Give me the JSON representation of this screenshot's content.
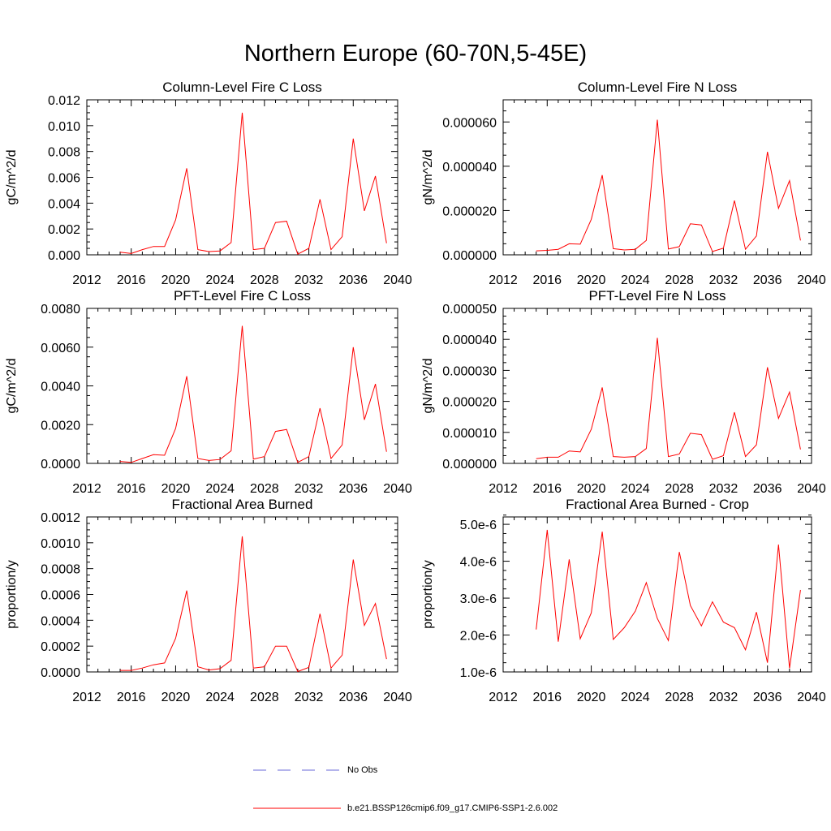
{
  "title": "Northern Europe (60-70N,5-45E)",
  "legend": [
    {
      "label": "No Obs",
      "color": "#6a6ad9",
      "style": "dashed"
    },
    {
      "label": "b.e21.BSSP126cmip6.f09_g17.CMIP6-SSP1-2.6.002",
      "color": "#ff0000",
      "style": "solid"
    }
  ],
  "chart_data": [
    {
      "type": "line",
      "title": "Column-Level Fire C Loss",
      "ylabel": "gC/m^2/d",
      "xlim": [
        2012,
        2040
      ],
      "xticks": [
        2012,
        2016,
        2020,
        2024,
        2028,
        2032,
        2036,
        2040
      ],
      "ylim": [
        0,
        0.012
      ],
      "yticks": [
        0,
        0.002,
        0.004,
        0.006,
        0.008,
        0.01,
        0.012
      ],
      "ytick_labels": [
        "0.000",
        "0.002",
        "0.004",
        "0.006",
        "0.008",
        "0.010",
        "0.012"
      ],
      "x": [
        2015,
        2016,
        2017,
        2018,
        2019,
        2020,
        2021,
        2022,
        2023,
        2024,
        2025,
        2026,
        2027,
        2028,
        2029,
        2030,
        2031,
        2032,
        2033,
        2034,
        2035,
        2036,
        2037,
        2038,
        2039
      ],
      "series": [
        {
          "color": "#ff0000",
          "values": [
            0.0002,
            0.0001,
            0.0004,
            0.00065,
            0.00065,
            0.0027,
            0.0067,
            0.0004,
            0.00025,
            0.0003,
            0.00095,
            0.011,
            0.0004,
            0.0005,
            0.0025,
            0.0026,
            5e-05,
            0.0005,
            0.0043,
            0.0004,
            0.0014,
            0.009,
            0.0034,
            0.0061,
            0.0009
          ]
        }
      ]
    },
    {
      "type": "line",
      "title": "Column-Level Fire N Loss",
      "ylabel": "gN/m^2/d",
      "xlim": [
        2012,
        2040
      ],
      "xticks": [
        2012,
        2016,
        2020,
        2024,
        2028,
        2032,
        2036,
        2040
      ],
      "ylim": [
        0,
        7e-05
      ],
      "yticks": [
        0,
        2e-05,
        4e-05,
        6e-05
      ],
      "ytick_labels": [
        "0.000000",
        "0.000020",
        "0.000040",
        "0.000060"
      ],
      "x": [
        2015,
        2016,
        2017,
        2018,
        2019,
        2020,
        2021,
        2022,
        2023,
        2024,
        2025,
        2026,
        2027,
        2028,
        2029,
        2030,
        2031,
        2032,
        2033,
        2034,
        2035,
        2036,
        2037,
        2038,
        2039
      ],
      "series": [
        {
          "color": "#ff0000",
          "values": [
            1.8e-06,
            2e-06,
            2.5e-06,
            5e-06,
            4.8e-06,
            1.6e-05,
            3.6e-05,
            2.8e-06,
            2.2e-06,
            2.5e-06,
            6.5e-06,
            6.1e-05,
            2.6e-06,
            3.7e-06,
            1.4e-05,
            1.35e-05,
            1.5e-06,
            3e-06,
            2.45e-05,
            2.5e-06,
            8.5e-06,
            4.65e-05,
            2.1e-05,
            3.35e-05,
            6.5e-06
          ]
        }
      ]
    },
    {
      "type": "line",
      "title": "PFT-Level Fire C Loss",
      "ylabel": "gC/m^2/d",
      "xlim": [
        2012,
        2040
      ],
      "xticks": [
        2012,
        2016,
        2020,
        2024,
        2028,
        2032,
        2036,
        2040
      ],
      "ylim": [
        0,
        0.008
      ],
      "yticks": [
        0,
        0.002,
        0.004,
        0.006,
        0.008
      ],
      "ytick_labels": [
        "0.0000",
        "0.0020",
        "0.0040",
        "0.0060",
        "0.0080"
      ],
      "x": [
        2015,
        2016,
        2017,
        2018,
        2019,
        2020,
        2021,
        2022,
        2023,
        2024,
        2025,
        2026,
        2027,
        2028,
        2029,
        2030,
        2031,
        2032,
        2033,
        2034,
        2035,
        2036,
        2037,
        2038,
        2039
      ],
      "series": [
        {
          "color": "#ff0000",
          "values": [
            0.0001,
            5e-05,
            0.00025,
            0.00045,
            0.00042,
            0.0018,
            0.0045,
            0.00025,
            0.00015,
            0.0002,
            0.00065,
            0.0071,
            0.00022,
            0.00035,
            0.00165,
            0.00175,
            5e-05,
            0.00035,
            0.00285,
            0.00025,
            0.00095,
            0.006,
            0.00225,
            0.0041,
            0.0006
          ]
        }
      ]
    },
    {
      "type": "line",
      "title": "PFT-Level Fire N Loss",
      "ylabel": "gN/m^2/d",
      "xlim": [
        2012,
        2040
      ],
      "xticks": [
        2012,
        2016,
        2020,
        2024,
        2028,
        2032,
        2036,
        2040
      ],
      "ylim": [
        0,
        5e-05
      ],
      "yticks": [
        0,
        1e-05,
        2e-05,
        3e-05,
        4e-05,
        5e-05
      ],
      "ytick_labels": [
        "0.000000",
        "0.000010",
        "0.000020",
        "0.000030",
        "0.000040",
        "0.000050"
      ],
      "x": [
        2015,
        2016,
        2017,
        2018,
        2019,
        2020,
        2021,
        2022,
        2023,
        2024,
        2025,
        2026,
        2027,
        2028,
        2029,
        2030,
        2031,
        2032,
        2033,
        2034,
        2035,
        2036,
        2037,
        2038,
        2039
      ],
      "series": [
        {
          "color": "#ff0000",
          "values": [
            1.5e-06,
            2e-06,
            2e-06,
            4e-06,
            3.7e-06,
            1.1e-05,
            2.45e-05,
            2.2e-06,
            2e-06,
            2.2e-06,
            4.8e-06,
            4.05e-05,
            2.2e-06,
            3e-06,
            9.7e-06,
            9.3e-06,
            1.3e-06,
            2.5e-06,
            1.65e-05,
            2.2e-06,
            6e-06,
            3.1e-05,
            1.45e-05,
            2.3e-05,
            4.5e-06
          ]
        }
      ]
    },
    {
      "type": "line",
      "title": "Fractional Area Burned",
      "ylabel": "proportion/y",
      "xlim": [
        2012,
        2040
      ],
      "xticks": [
        2012,
        2016,
        2020,
        2024,
        2028,
        2032,
        2036,
        2040
      ],
      "ylim": [
        0,
        0.0012
      ],
      "yticks": [
        0,
        0.0002,
        0.0004,
        0.0006,
        0.0008,
        0.001,
        0.0012
      ],
      "ytick_labels": [
        "0.0000",
        "0.0002",
        "0.0004",
        "0.0006",
        "0.0008",
        "0.0010",
        "0.0012"
      ],
      "x": [
        2015,
        2016,
        2017,
        2018,
        2019,
        2020,
        2021,
        2022,
        2023,
        2024,
        2025,
        2026,
        2027,
        2028,
        2029,
        2030,
        2031,
        2032,
        2033,
        2034,
        2035,
        2036,
        2037,
        2038,
        2039
      ],
      "series": [
        {
          "color": "#ff0000",
          "values": [
            1.2e-05,
            1.2e-05,
            3e-05,
            5.5e-05,
            7e-05,
            0.00026,
            0.00063,
            4e-05,
            1.5e-05,
            2.5e-05,
            9e-05,
            0.00105,
            3e-05,
            4e-05,
            0.0002,
            0.0002,
            3e-06,
            3.5e-05,
            0.00045,
            3e-05,
            0.00013,
            0.00087,
            0.00036,
            0.00053,
            0.0001
          ]
        }
      ]
    },
    {
      "type": "line",
      "title": "Fractional Area Burned - Crop",
      "ylabel": "proportion/y",
      "xlim": [
        2012,
        2040
      ],
      "xticks": [
        2012,
        2016,
        2020,
        2024,
        2028,
        2032,
        2036,
        2040
      ],
      "ylim": [
        1e-06,
        5.2e-06
      ],
      "yticks": [
        1e-06,
        2e-06,
        3e-06,
        4e-06,
        5e-06
      ],
      "ytick_labels": [
        "1.0e-6",
        "2.0e-6",
        "3.0e-6",
        "4.0e-6",
        "5.0e-6"
      ],
      "x": [
        2015,
        2016,
        2017,
        2018,
        2019,
        2020,
        2021,
        2022,
        2023,
        2024,
        2025,
        2026,
        2027,
        2028,
        2029,
        2030,
        2031,
        2032,
        2033,
        2034,
        2035,
        2036,
        2037,
        2038,
        2039
      ],
      "series": [
        {
          "color": "#ff0000",
          "values": [
            2.15e-06,
            4.85e-06,
            1.82e-06,
            4.05e-06,
            1.9e-06,
            2.6e-06,
            4.8e-06,
            1.88e-06,
            2.2e-06,
            2.65e-06,
            3.42e-06,
            2.45e-06,
            1.85e-06,
            4.25e-06,
            2.8e-06,
            2.25e-06,
            2.9e-06,
            2.35e-06,
            2.2e-06,
            1.6e-06,
            2.62e-06,
            1.25e-06,
            4.45e-06,
            1.1e-06,
            3.22e-06
          ]
        }
      ]
    }
  ]
}
